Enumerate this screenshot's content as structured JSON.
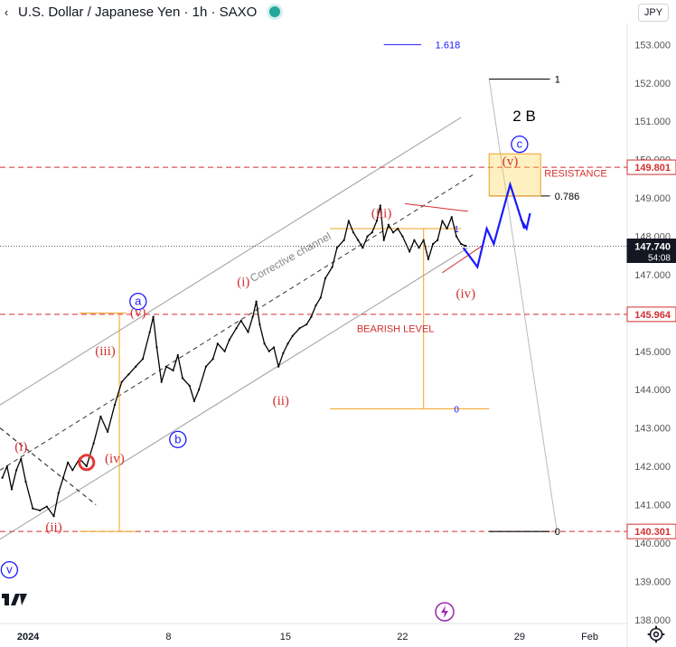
{
  "header": {
    "symbol": "U.S. Dollar / Japanese Yen",
    "interval": "1h",
    "exchange": "SAXO",
    "status_color": "#26a69a"
  },
  "currency_label": "JPY",
  "colors": {
    "price": "#000000",
    "resistance": "#d32f2f",
    "fib": "#f0a020",
    "wave_red": "#d32f2f",
    "wave_blue": "#1a1aff",
    "channel": "#9e9e9e"
  },
  "chart_data": {
    "type": "line",
    "title": "U.S. Dollar / Japanese Yen · 1h · SAXO",
    "x_unit": "trading days",
    "x_ticks": [
      {
        "label": "2024",
        "x": 0
      },
      {
        "label": "8",
        "x": 6
      },
      {
        "label": "15",
        "x": 11
      },
      {
        "label": "22",
        "x": 16
      },
      {
        "label": "29",
        "x": 21
      },
      {
        "label": "Feb",
        "x": 24
      }
    ],
    "xlim": [
      -1.2,
      25.6
    ],
    "ylim": [
      137.9,
      153.55
    ],
    "y_ticks": [
      138,
      139,
      140,
      141,
      142,
      143,
      144,
      145,
      146,
      147,
      148,
      149,
      150,
      151,
      152,
      153
    ],
    "series": [
      {
        "name": "USDJPY",
        "points": [
          [
            -1.1,
            141.7
          ],
          [
            -0.9,
            142.0
          ],
          [
            -0.7,
            141.4
          ],
          [
            -0.5,
            141.9
          ],
          [
            -0.3,
            142.2
          ],
          [
            -0.1,
            141.6
          ],
          [
            0.2,
            140.9
          ],
          [
            0.5,
            140.85
          ],
          [
            0.8,
            140.95
          ],
          [
            1.1,
            140.7
          ],
          [
            1.3,
            141.3
          ],
          [
            1.5,
            141.7
          ],
          [
            1.7,
            142.1
          ],
          [
            1.9,
            141.9
          ],
          [
            2.2,
            142.2
          ],
          [
            2.5,
            142.0
          ],
          [
            2.8,
            142.6
          ],
          [
            3.1,
            143.3
          ],
          [
            3.4,
            142.9
          ],
          [
            3.7,
            143.6
          ],
          [
            4.0,
            144.2
          ],
          [
            4.3,
            144.4
          ],
          [
            4.6,
            144.6
          ],
          [
            4.9,
            144.8
          ],
          [
            5.2,
            145.5
          ],
          [
            5.35,
            145.9
          ],
          [
            5.5,
            145.1
          ],
          [
            5.7,
            144.2
          ],
          [
            5.9,
            144.6
          ],
          [
            6.2,
            144.5
          ],
          [
            6.4,
            144.9
          ],
          [
            6.6,
            144.3
          ],
          [
            6.9,
            144.1
          ],
          [
            7.1,
            143.7
          ],
          [
            7.3,
            144.0
          ],
          [
            7.6,
            144.6
          ],
          [
            7.9,
            144.8
          ],
          [
            8.1,
            145.2
          ],
          [
            8.4,
            145.0
          ],
          [
            8.6,
            145.3
          ],
          [
            8.9,
            145.6
          ],
          [
            9.1,
            145.8
          ],
          [
            9.4,
            145.5
          ],
          [
            9.6,
            145.9
          ],
          [
            9.75,
            146.3
          ],
          [
            9.9,
            145.7
          ],
          [
            10.1,
            145.2
          ],
          [
            10.3,
            145.0
          ],
          [
            10.5,
            145.1
          ],
          [
            10.7,
            144.6
          ],
          [
            10.9,
            144.95
          ],
          [
            11.1,
            145.2
          ],
          [
            11.3,
            145.4
          ],
          [
            11.6,
            145.6
          ],
          [
            11.9,
            145.7
          ],
          [
            12.1,
            145.9
          ],
          [
            12.3,
            146.2
          ],
          [
            12.5,
            146.4
          ],
          [
            12.7,
            146.9
          ],
          [
            13.0,
            147.2
          ],
          [
            13.2,
            147.7
          ],
          [
            13.5,
            147.9
          ],
          [
            13.7,
            148.4
          ],
          [
            13.9,
            148.1
          ],
          [
            14.1,
            147.9
          ],
          [
            14.3,
            147.7
          ],
          [
            14.5,
            148.0
          ],
          [
            14.7,
            148.1
          ],
          [
            14.9,
            148.4
          ],
          [
            15.05,
            148.8
          ],
          [
            15.2,
            147.9
          ],
          [
            15.4,
            148.3
          ],
          [
            15.6,
            148.1
          ],
          [
            15.8,
            148.2
          ],
          [
            16.0,
            148.0
          ],
          [
            16.3,
            147.6
          ],
          [
            16.5,
            147.9
          ],
          [
            16.7,
            147.7
          ],
          [
            16.9,
            147.9
          ],
          [
            17.1,
            147.4
          ],
          [
            17.3,
            147.8
          ],
          [
            17.5,
            147.9
          ],
          [
            17.7,
            148.4
          ],
          [
            17.9,
            148.2
          ],
          [
            18.1,
            148.5
          ],
          [
            18.3,
            148.0
          ],
          [
            18.5,
            147.8
          ],
          [
            18.7,
            147.75
          ]
        ]
      }
    ],
    "price_labels": [
      {
        "text": "149.801",
        "value": 149.801,
        "style": "resistance"
      },
      {
        "text": "147.740",
        "sub": "54:08",
        "value": 147.74,
        "style": "last"
      },
      {
        "text": "145.964",
        "value": 145.964,
        "style": "resistance"
      },
      {
        "text": "140.301",
        "value": 140.301,
        "style": "resistance"
      }
    ],
    "text_annotations": {
      "fib_1618": "1.618",
      "fib_1_top": "1",
      "fib_0786": "0.786",
      "fib_0_bottom": "0",
      "fib_1_small": "1",
      "fib_0_small": "0",
      "resistance": "RESISTANCE",
      "bearish_level": "BEARISH LEVEL",
      "corrective_channel": "Corrective channel",
      "wave_2b": "2 B",
      "wave_c": "c",
      "wave_b": "b",
      "wave_a": "a",
      "wave_v_circle": "v",
      "wave_v_top": "(v)",
      "wave_iii_top": "(iii)",
      "wave_iv_right": "(iv)",
      "wave_i_mid": "(i)",
      "wave_ii_mid": "(ii)",
      "wave_v_left": "(v)",
      "wave_iii_left": "(iii)",
      "wave_iv_left": "(iv)",
      "wave_i_left": "(i)",
      "wave_ii_left": "(ii)"
    },
    "grid": false,
    "legend": "none"
  }
}
